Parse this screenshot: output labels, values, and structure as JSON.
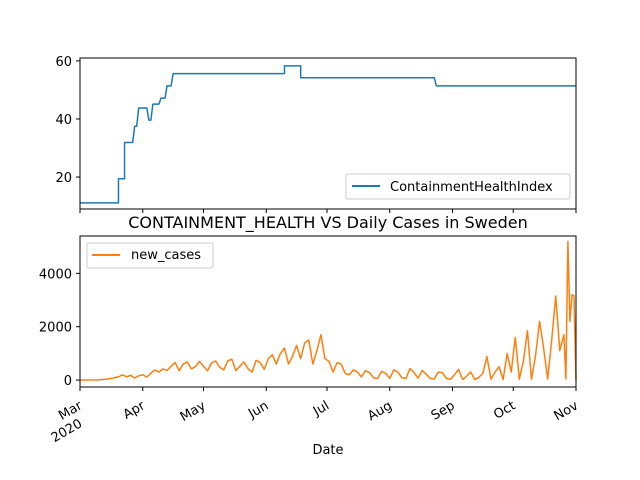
{
  "chart_data": [
    {
      "type": "line",
      "title": "",
      "xlabel": "",
      "ylabel": "",
      "ylim": [
        9,
        61
      ],
      "yticks": [
        20,
        40,
        60
      ],
      "legend": "lower-right",
      "grid": false,
      "series": [
        {
          "name": "ContainmentHealthIndex",
          "color": "#1f77b4",
          "points": [
            [
              "2020-03-01",
              11.1
            ],
            [
              "2020-03-20",
              11.1
            ],
            [
              "2020-03-20",
              19.4
            ],
            [
              "2020-03-23",
              19.4
            ],
            [
              "2020-03-23",
              31.9
            ],
            [
              "2020-03-27",
              31.9
            ],
            [
              "2020-03-28",
              37.5
            ],
            [
              "2020-03-29",
              37.5
            ],
            [
              "2020-03-30",
              43.8
            ],
            [
              "2020-04-03",
              43.8
            ],
            [
              "2020-04-04",
              39.6
            ],
            [
              "2020-04-05",
              39.6
            ],
            [
              "2020-04-06",
              45.1
            ],
            [
              "2020-04-09",
              45.1
            ],
            [
              "2020-04-10",
              47.2
            ],
            [
              "2020-04-12",
              47.2
            ],
            [
              "2020-04-13",
              51.4
            ],
            [
              "2020-04-15",
              51.4
            ],
            [
              "2020-04-16",
              55.6
            ],
            [
              "2020-06-10",
              55.6
            ],
            [
              "2020-06-10",
              58.3
            ],
            [
              "2020-06-18",
              58.3
            ],
            [
              "2020-06-18",
              54.2
            ],
            [
              "2020-08-23",
              54.2
            ],
            [
              "2020-08-24",
              51.4
            ],
            [
              "2020-11-01",
              51.4
            ]
          ]
        }
      ]
    },
    {
      "type": "line",
      "title": "CONTAINMENT_HEALTH VS Daily Cases in Sweden",
      "xlabel": "Date",
      "ylabel": "",
      "ylim": [
        -260,
        5400
      ],
      "yticks": [
        0,
        2000,
        4000
      ],
      "legend": "upper-left",
      "grid": false,
      "series": [
        {
          "name": "new_cases",
          "color": "#ff7f0e",
          "points": [
            [
              "2020-03-01",
              0
            ],
            [
              "2020-03-10",
              5
            ],
            [
              "2020-03-15",
              40
            ],
            [
              "2020-03-18",
              90
            ],
            [
              "2020-03-20",
              120
            ],
            [
              "2020-03-22",
              200
            ],
            [
              "2020-03-24",
              120
            ],
            [
              "2020-03-26",
              180
            ],
            [
              "2020-03-28",
              80
            ],
            [
              "2020-03-30",
              160
            ],
            [
              "2020-04-01",
              200
            ],
            [
              "2020-04-03",
              110
            ],
            [
              "2020-04-05",
              260
            ],
            [
              "2020-04-07",
              380
            ],
            [
              "2020-04-09",
              300
            ],
            [
              "2020-04-11",
              420
            ],
            [
              "2020-04-13",
              360
            ],
            [
              "2020-04-15",
              520
            ],
            [
              "2020-04-17",
              660
            ],
            [
              "2020-04-19",
              350
            ],
            [
              "2020-04-21",
              600
            ],
            [
              "2020-04-23",
              680
            ],
            [
              "2020-04-25",
              420
            ],
            [
              "2020-04-27",
              500
            ],
            [
              "2020-04-29",
              700
            ],
            [
              "2020-05-01",
              520
            ],
            [
              "2020-05-03",
              350
            ],
            [
              "2020-05-05",
              640
            ],
            [
              "2020-05-07",
              720
            ],
            [
              "2020-05-09",
              480
            ],
            [
              "2020-05-11",
              380
            ],
            [
              "2020-05-13",
              720
            ],
            [
              "2020-05-15",
              780
            ],
            [
              "2020-05-17",
              350
            ],
            [
              "2020-05-19",
              520
            ],
            [
              "2020-05-21",
              680
            ],
            [
              "2020-05-23",
              420
            ],
            [
              "2020-05-25",
              300
            ],
            [
              "2020-05-27",
              740
            ],
            [
              "2020-05-29",
              660
            ],
            [
              "2020-05-31",
              400
            ],
            [
              "2020-06-02",
              800
            ],
            [
              "2020-06-04",
              950
            ],
            [
              "2020-06-06",
              600
            ],
            [
              "2020-06-08",
              1000
            ],
            [
              "2020-06-10",
              1200
            ],
            [
              "2020-06-12",
              600
            ],
            [
              "2020-06-14",
              900
            ],
            [
              "2020-06-16",
              1300
            ],
            [
              "2020-06-18",
              800
            ],
            [
              "2020-06-20",
              1400
            ],
            [
              "2020-06-22",
              1500
            ],
            [
              "2020-06-24",
              600
            ],
            [
              "2020-06-26",
              1100
            ],
            [
              "2020-06-28",
              1700
            ],
            [
              "2020-06-30",
              800
            ],
            [
              "2020-07-02",
              700
            ],
            [
              "2020-07-04",
              300
            ],
            [
              "2020-07-06",
              650
            ],
            [
              "2020-07-08",
              600
            ],
            [
              "2020-07-10",
              250
            ],
            [
              "2020-07-12",
              200
            ],
            [
              "2020-07-14",
              380
            ],
            [
              "2020-07-16",
              300
            ],
            [
              "2020-07-18",
              120
            ],
            [
              "2020-07-20",
              350
            ],
            [
              "2020-07-22",
              280
            ],
            [
              "2020-07-24",
              80
            ],
            [
              "2020-07-26",
              60
            ],
            [
              "2020-07-28",
              330
            ],
            [
              "2020-07-30",
              250
            ],
            [
              "2020-08-01",
              60
            ],
            [
              "2020-08-03",
              380
            ],
            [
              "2020-08-05",
              300
            ],
            [
              "2020-08-07",
              90
            ],
            [
              "2020-08-09",
              60
            ],
            [
              "2020-08-11",
              430
            ],
            [
              "2020-08-13",
              280
            ],
            [
              "2020-08-15",
              70
            ],
            [
              "2020-08-17",
              360
            ],
            [
              "2020-08-19",
              220
            ],
            [
              "2020-08-21",
              60
            ],
            [
              "2020-08-23",
              40
            ],
            [
              "2020-08-25",
              300
            ],
            [
              "2020-08-27",
              280
            ],
            [
              "2020-08-29",
              60
            ],
            [
              "2020-08-31",
              30
            ],
            [
              "2020-09-02",
              200
            ],
            [
              "2020-09-04",
              400
            ],
            [
              "2020-09-06",
              20
            ],
            [
              "2020-09-08",
              150
            ],
            [
              "2020-09-10",
              300
            ],
            [
              "2020-09-12",
              20
            ],
            [
              "2020-09-14",
              100
            ],
            [
              "2020-09-16",
              250
            ],
            [
              "2020-09-18",
              880
            ],
            [
              "2020-09-20",
              30
            ],
            [
              "2020-09-22",
              300
            ],
            [
              "2020-09-24",
              500
            ],
            [
              "2020-09-26",
              20
            ],
            [
              "2020-09-28",
              1000
            ],
            [
              "2020-09-30",
              300
            ],
            [
              "2020-10-02",
              1600
            ],
            [
              "2020-10-04",
              30
            ],
            [
              "2020-10-06",
              700
            ],
            [
              "2020-10-08",
              1850
            ],
            [
              "2020-10-10",
              30
            ],
            [
              "2020-10-12",
              900
            ],
            [
              "2020-10-14",
              2200
            ],
            [
              "2020-10-16",
              1200
            ],
            [
              "2020-10-18",
              40
            ],
            [
              "2020-10-20",
              1500
            ],
            [
              "2020-10-22",
              3150
            ],
            [
              "2020-10-24",
              1100
            ],
            [
              "2020-10-26",
              1700
            ],
            [
              "2020-10-27",
              40
            ],
            [
              "2020-10-28",
              5200
            ],
            [
              "2020-10-29",
              2200
            ],
            [
              "2020-10-30",
              3200
            ],
            [
              "2020-10-31",
              3150
            ],
            [
              "2020-11-01",
              0
            ]
          ]
        }
      ],
      "xticks": [
        {
          "date": "2020-03-01",
          "label": "Mar",
          "sublabel": "2020"
        },
        {
          "date": "2020-04-01",
          "label": "Apr",
          "sublabel": ""
        },
        {
          "date": "2020-05-01",
          "label": "May",
          "sublabel": ""
        },
        {
          "date": "2020-06-01",
          "label": "Jun",
          "sublabel": ""
        },
        {
          "date": "2020-07-01",
          "label": "Jul",
          "sublabel": ""
        },
        {
          "date": "2020-08-01",
          "label": "Aug",
          "sublabel": ""
        },
        {
          "date": "2020-09-01",
          "label": "Sep",
          "sublabel": ""
        },
        {
          "date": "2020-10-01",
          "label": "Oct",
          "sublabel": ""
        },
        {
          "date": "2020-11-01",
          "label": "Nov",
          "sublabel": ""
        }
      ]
    }
  ]
}
